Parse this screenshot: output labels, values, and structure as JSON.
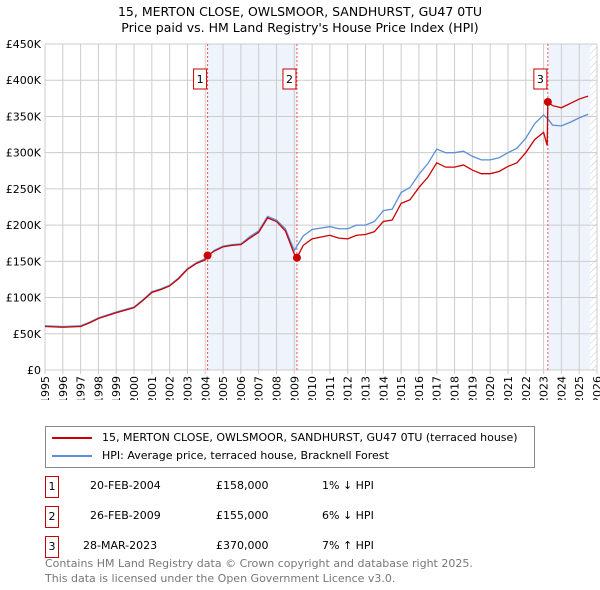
{
  "chart_data": {
    "type": "line",
    "title": "15, MERTON CLOSE, OWLSMOOR, SANDHURST, GU47 0TU",
    "subtitle": "Price paid vs. HM Land Registry's House Price Index (HPI)",
    "xlim": [
      1995,
      2026
    ],
    "ylim": [
      0,
      450000
    ],
    "x_ticks": [
      "1995",
      "1996",
      "1997",
      "1998",
      "1999",
      "2000",
      "2001",
      "2002",
      "2003",
      "2004",
      "2005",
      "2006",
      "2007",
      "2008",
      "2009",
      "2010",
      "2011",
      "2012",
      "2013",
      "2014",
      "2015",
      "2016",
      "2017",
      "2018",
      "2019",
      "2020",
      "2021",
      "2022",
      "2023",
      "2024",
      "2025",
      "2026"
    ],
    "y_ticks": [
      {
        "v": 0,
        "l": "£0"
      },
      {
        "v": 50000,
        "l": "£50K"
      },
      {
        "v": 100000,
        "l": "£100K"
      },
      {
        "v": 150000,
        "l": "£150K"
      },
      {
        "v": 200000,
        "l": "£200K"
      },
      {
        "v": 250000,
        "l": "£250K"
      },
      {
        "v": 300000,
        "l": "£300K"
      },
      {
        "v": 350000,
        "l": "£350K"
      },
      {
        "v": 400000,
        "l": "£400K"
      },
      {
        "v": 450000,
        "l": "£450K"
      }
    ],
    "grid": true,
    "shaded_ranges": [
      [
        2004.13,
        2009.15
      ],
      [
        2023.24,
        2025.6
      ]
    ],
    "forecast_hatch_from": 2025.6,
    "series": [
      {
        "name": "15, MERTON CLOSE, OWLSMOOR, SANDHURST, GU47 0TU (terraced house)",
        "color": "#cc0000",
        "x": [
          1995,
          1996,
          1997,
          1997.5,
          1998,
          1999,
          2000,
          2000.5,
          2001,
          2001.5,
          2002,
          2002.5,
          2003,
          2003.5,
          2004,
          2004.13,
          2004.5,
          2005,
          2005.5,
          2006,
          2006.5,
          2007,
          2007.5,
          2008,
          2008.5,
          2009,
          2009.15,
          2009.5,
          2010,
          2011,
          2011.5,
          2012,
          2012.5,
          2013,
          2013.5,
          2014,
          2014.5,
          2015,
          2015.5,
          2016,
          2016.5,
          2017,
          2017.5,
          2018,
          2018.5,
          2019,
          2019.5,
          2020,
          2020.5,
          2021,
          2021.5,
          2022,
          2022.5,
          2023,
          2023.2,
          2023.24,
          2023.5,
          2024,
          2024.5,
          2025,
          2025.5
        ],
        "y": [
          60,
          59,
          60,
          65,
          71,
          79,
          86,
          96,
          107,
          111,
          116,
          126,
          139,
          147,
          152,
          158,
          164,
          170,
          172,
          173,
          182,
          190,
          210,
          205,
          192,
          160,
          155,
          172,
          181,
          186,
          182,
          181,
          186,
          187,
          191,
          205,
          207,
          230,
          235,
          252,
          266,
          286,
          280,
          280,
          283,
          276,
          271,
          271,
          274,
          281,
          286,
          300,
          318,
          328,
          310,
          370,
          365,
          362,
          368,
          374,
          378
        ]
      },
      {
        "name": "HPI: Average price, terraced house, Bracknell Forest",
        "color": "#5b8fd6",
        "x": [
          1995,
          1996,
          1997,
          1997.5,
          1998,
          1999,
          2000,
          2000.5,
          2001,
          2001.5,
          2002,
          2002.5,
          2003,
          2003.5,
          2004,
          2004.5,
          2005,
          2005.5,
          2006,
          2006.5,
          2007,
          2007.5,
          2008,
          2008.5,
          2009,
          2009.5,
          2010,
          2011,
          2011.5,
          2012,
          2012.5,
          2013,
          2013.5,
          2014,
          2014.5,
          2015,
          2015.5,
          2016,
          2016.5,
          2017,
          2017.5,
          2018,
          2018.5,
          2019,
          2019.5,
          2020,
          2020.5,
          2021,
          2021.5,
          2022,
          2022.5,
          2023,
          2023.3,
          2023.5,
          2024,
          2024.5,
          2025,
          2025.5
        ],
        "y": [
          61,
          60,
          61,
          66,
          72,
          80,
          87,
          97,
          108,
          112,
          117,
          127,
          140,
          148,
          154,
          165,
          171,
          173,
          174,
          184,
          192,
          212,
          207,
          195,
          165,
          185,
          194,
          198,
          195,
          195,
          200,
          200,
          205,
          220,
          222,
          245,
          252,
          270,
          285,
          305,
          300,
          300,
          302,
          295,
          290,
          290,
          293,
          300,
          306,
          320,
          340,
          352,
          345,
          338,
          337,
          342,
          348,
          353
        ]
      }
    ],
    "y_unit": 1000,
    "sales": [
      {
        "n": "1",
        "x": 2004.13,
        "y": 158000,
        "date": "20-FEB-2004",
        "price": "£158,000",
        "hpi": "1% ↓ HPI"
      },
      {
        "n": "2",
        "x": 2009.15,
        "y": 155000,
        "date": "26-FEB-2009",
        "price": "£155,000",
        "hpi": "6% ↓ HPI"
      },
      {
        "n": "3",
        "x": 2023.24,
        "y": 370000,
        "date": "28-MAR-2023",
        "price": "£370,000",
        "hpi": "7% ↑ HPI"
      }
    ]
  },
  "footer": [
    "Contains HM Land Registry data © Crown copyright and database right 2025.",
    "This data is licensed under the Open Government Licence v3.0."
  ]
}
